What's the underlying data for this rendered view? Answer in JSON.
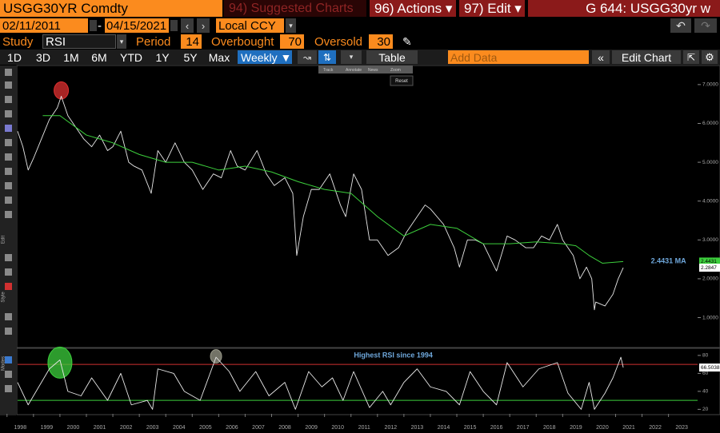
{
  "toolbar": {
    "security": "USGG30YR Comdty",
    "suggested": "94) Suggested Charts",
    "actions": "96) Actions ▾",
    "edit": "97) Edit ▾",
    "title": "G 644: USGG30yr w"
  },
  "dates": {
    "start": "02/11/2011",
    "separator": "-",
    "end": "04/15/2021",
    "currency": "Local CCY"
  },
  "study": {
    "label": "Study",
    "name": "RSI",
    "period_label": "Period",
    "period": 14,
    "overbought_label": "Overbought",
    "overbought": 70,
    "oversold_label": "Oversold",
    "oversold": 30
  },
  "ranges": [
    "1D",
    "3D",
    "1M",
    "6M",
    "YTD",
    "1Y",
    "5Y",
    "Max"
  ],
  "frequency": "Weekly ▼",
  "table": "Table",
  "add_data": "Add Data",
  "edit_chart": "Edit Chart",
  "mini_toolbar": [
    "Track",
    "Annotate",
    "News",
    "Zoom"
  ],
  "reset": "Reset",
  "side_labels": [
    "Edit",
    "Style",
    "Modes"
  ],
  "chart_data": [
    {
      "type": "line",
      "xlim": [
        1998.4,
        2024.1
      ],
      "ylim": [
        0.25,
        7.45
      ],
      "yticks": [
        {
          "value": 1,
          "label": "1.0000"
        },
        {
          "value": 2,
          "label": "2.0000"
        },
        {
          "value": 3,
          "label": "3.0000"
        },
        {
          "value": 4,
          "label": "4.0000"
        },
        {
          "value": 5,
          "label": "5.0000"
        },
        {
          "value": 6,
          "label": "6.0000"
        },
        {
          "value": 7,
          "label": "7.0000"
        }
      ],
      "series": [
        {
          "color": "#e8e8e8",
          "x": [
            1998.4,
            1998.6,
            1998.8,
            1999.0,
            1999.3,
            1999.6,
            1999.9,
            2000.05,
            2000.3,
            2000.6,
            2000.9,
            2001.2,
            2001.5,
            2001.8,
            2002.0,
            2002.3,
            2002.6,
            2002.8,
            2003.1,
            2003.45,
            2003.7,
            2004.0,
            2004.35,
            2004.7,
            2005.0,
            2005.4,
            2005.8,
            2006.1,
            2006.45,
            2006.7,
            2007.0,
            2007.45,
            2007.8,
            2008.1,
            2008.5,
            2008.8,
            2008.95,
            2009.2,
            2009.5,
            2009.8,
            2010.2,
            2010.6,
            2010.8,
            2011.1,
            2011.4,
            2011.7,
            2012.0,
            2012.4,
            2012.8,
            2013.1,
            2013.5,
            2013.8,
            2014.0,
            2014.5,
            2014.9,
            2015.1,
            2015.4,
            2015.7,
            2016.0,
            2016.5,
            2016.9,
            2017.2,
            2017.6,
            2017.9,
            2018.2,
            2018.5,
            2018.8,
            2019.0,
            2019.4,
            2019.65,
            2019.9,
            2020.1,
            2020.2,
            2020.25,
            2020.6,
            2020.9,
            2021.1,
            2021.29
          ],
          "values": [
            5.8,
            5.4,
            4.8,
            5.1,
            5.6,
            6.1,
            6.4,
            6.7,
            6.2,
            5.9,
            5.6,
            5.4,
            5.7,
            5.3,
            5.4,
            5.8,
            5.0,
            4.9,
            4.8,
            4.2,
            5.3,
            5.0,
            5.5,
            5.0,
            4.8,
            4.3,
            4.7,
            4.6,
            5.3,
            4.9,
            4.8,
            5.3,
            4.7,
            4.4,
            4.6,
            4.2,
            2.6,
            3.6,
            4.3,
            4.3,
            4.7,
            3.9,
            3.6,
            4.7,
            4.3,
            3.0,
            3.0,
            2.6,
            2.8,
            3.2,
            3.6,
            3.9,
            3.8,
            3.4,
            2.8,
            2.3,
            3.0,
            3.0,
            2.9,
            2.2,
            3.1,
            3.0,
            2.8,
            2.8,
            3.1,
            3.0,
            3.4,
            3.0,
            2.6,
            2.0,
            2.3,
            2.0,
            1.2,
            1.4,
            1.3,
            1.6,
            2.0,
            2.2847
          ]
        },
        {
          "color": "#3ccf3c",
          "x": [
            1999.35,
            2000.0,
            2001.0,
            2002.0,
            2003.0,
            2004.0,
            2005.0,
            2006.0,
            2007.0,
            2008.0,
            2009.0,
            2010.0,
            2011.0,
            2012.0,
            2013.0,
            2014.0,
            2015.0,
            2016.0,
            2017.0,
            2018.0,
            2019.0,
            2019.5,
            2020.0,
            2020.5,
            2021.29
          ],
          "values": [
            6.2,
            6.2,
            5.7,
            5.5,
            5.2,
            5.0,
            5.0,
            4.8,
            4.9,
            4.75,
            4.5,
            4.3,
            4.2,
            3.6,
            3.1,
            3.4,
            3.3,
            2.9,
            2.9,
            2.95,
            2.9,
            2.85,
            2.6,
            2.4,
            2.4431
          ]
        }
      ],
      "value_tags": [
        {
          "value": 2.4431,
          "label": "2.4431",
          "color": "#3ccf3c"
        },
        {
          "value": 2.2847,
          "label": "2.2847",
          "color": "#ffffff"
        }
      ],
      "annotations": [
        {
          "text": "2.4431 MA",
          "x": 2023.0,
          "y": 2.45,
          "color": "#6fa8dc"
        }
      ],
      "highlights": [
        {
          "x": 2000.05,
          "y": 6.85,
          "color": "#e03030"
        }
      ]
    },
    {
      "type": "line",
      "xlim": [
        1998.4,
        2024.1
      ],
      "ylim": [
        15,
        87
      ],
      "yticks": [
        20,
        40,
        60,
        80
      ],
      "xticks": [
        1998,
        1999,
        2000,
        2001,
        2002,
        2003,
        2004,
        2005,
        2006,
        2007,
        2008,
        2009,
        2010,
        2011,
        2012,
        2013,
        2014,
        2015,
        2016,
        2017,
        2018,
        2019,
        2020,
        2021,
        2022,
        2023
      ],
      "series": [
        {
          "color": "#e8e8e8",
          "x": [
            1998.4,
            1998.8,
            1999.2,
            1999.6,
            2000.0,
            2000.3,
            2000.8,
            2001.2,
            2001.8,
            2002.3,
            2002.7,
            2003.3,
            2003.5,
            2003.7,
            2004.3,
            2004.7,
            2005.3,
            2005.9,
            2006.4,
            2006.8,
            2007.4,
            2007.9,
            2008.5,
            2008.9,
            2009.4,
            2009.9,
            2010.3,
            2010.7,
            2011.1,
            2011.7,
            2012.2,
            2012.5,
            2013.0,
            2013.5,
            2014.0,
            2014.6,
            2015.1,
            2015.5,
            2016.0,
            2016.5,
            2016.9,
            2017.5,
            2018.1,
            2018.8,
            2019.2,
            2019.7,
            2020.0,
            2020.2,
            2020.6,
            2020.9,
            2021.2,
            2021.29
          ],
          "values": [
            50,
            25,
            45,
            65,
            75,
            40,
            35,
            55,
            30,
            60,
            25,
            30,
            20,
            65,
            60,
            40,
            30,
            78,
            62,
            40,
            62,
            35,
            50,
            20,
            62,
            45,
            55,
            30,
            62,
            22,
            40,
            25,
            50,
            65,
            45,
            40,
            25,
            62,
            40,
            25,
            72,
            45,
            65,
            72,
            38,
            20,
            50,
            20,
            38,
            55,
            78,
            66.5038
          ]
        }
      ],
      "value_tags": [
        {
          "value": 66.5038,
          "label": "66.5038",
          "color": "#ffffff"
        }
      ],
      "annotations": [
        {
          "text": "Highest RSI since 1994",
          "x": 2012.6,
          "y": 80,
          "color": "#6fa8dc"
        }
      ],
      "highlights": [
        {
          "x": 2000.0,
          "y": 72,
          "color": "#3ccf3c"
        },
        {
          "x": 2005.9,
          "y": 79,
          "color": "#9a9a8a"
        }
      ]
    }
  ]
}
